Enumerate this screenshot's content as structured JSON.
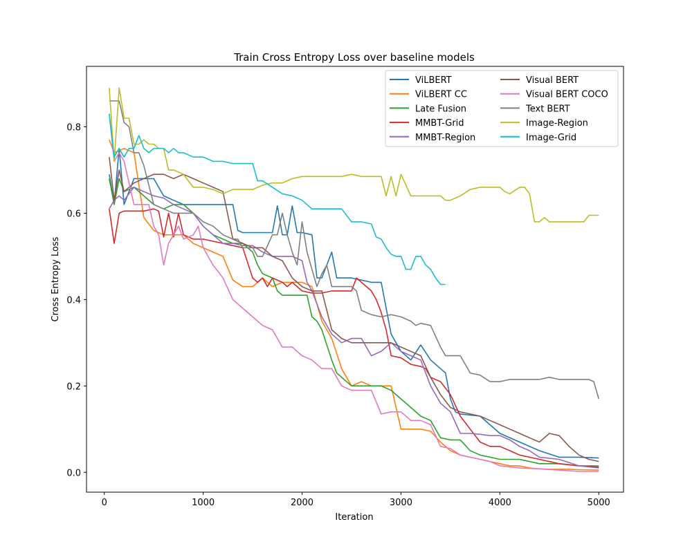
{
  "chart_data": {
    "type": "line",
    "title": "Train Cross Entropy Loss over baseline models",
    "xlabel": "Iteration",
    "ylabel": "Cross Entropy Loss",
    "xlim": [
      -180,
      5250
    ],
    "ylim": [
      -0.046,
      0.94
    ],
    "xticks": [
      0,
      1000,
      2000,
      3000,
      4000,
      5000
    ],
    "yticks": [
      0.0,
      0.2,
      0.4,
      0.6,
      0.8
    ],
    "grid": false,
    "legend_position": "top-right",
    "legend_columns": 2,
    "series": [
      {
        "name": "ViLBERT",
        "color": "#1f77b4",
        "x": [
          50,
          100,
          150,
          200,
          300,
          400,
          500,
          600,
          700,
          800,
          900,
          1000,
          1200,
          1300,
          1350,
          1400,
          1500,
          1600,
          1700,
          1750,
          1800,
          1850,
          1900,
          1950,
          2000,
          2100,
          2150,
          2200,
          2300,
          2350,
          2400,
          2500,
          2600,
          2700,
          2800,
          2900,
          3000,
          3100,
          3200,
          3300,
          3400,
          3450,
          3500,
          3550,
          3600,
          3800,
          4000,
          4200,
          4400,
          4600,
          4800,
          5000
        ],
        "y": [
          0.69,
          0.62,
          0.75,
          0.62,
          0.68,
          0.68,
          0.68,
          0.64,
          0.63,
          0.62,
          0.62,
          0.62,
          0.62,
          0.62,
          0.56,
          0.555,
          0.555,
          0.555,
          0.555,
          0.617,
          0.55,
          0.55,
          0.617,
          0.555,
          0.555,
          0.55,
          0.45,
          0.45,
          0.51,
          0.45,
          0.45,
          0.45,
          0.445,
          0.44,
          0.44,
          0.32,
          0.28,
          0.26,
          0.295,
          0.26,
          0.24,
          0.23,
          0.17,
          0.14,
          0.135,
          0.13,
          0.09,
          0.07,
          0.05,
          0.035,
          0.035,
          0.033
        ]
      },
      {
        "name": "ViLBERT CC",
        "color": "#ff7f0e",
        "x": [
          50,
          100,
          200,
          300,
          400,
          500,
          600,
          700,
          800,
          900,
          1000,
          1100,
          1200,
          1300,
          1400,
          1500,
          1600,
          1700,
          1800,
          1900,
          2000,
          2100,
          2200,
          2300,
          2400,
          2500,
          2600,
          2700,
          2800,
          2900,
          3000,
          3100,
          3200,
          3300,
          3400,
          3500,
          3600,
          3700,
          3800,
          3900,
          4000,
          4100,
          4200,
          4300,
          4400,
          4500,
          4600,
          4700,
          4800,
          5000
        ],
        "y": [
          0.77,
          0.74,
          0.75,
          0.74,
          0.59,
          0.56,
          0.55,
          0.55,
          0.55,
          0.53,
          0.52,
          0.51,
          0.5,
          0.445,
          0.43,
          0.43,
          0.45,
          0.43,
          0.44,
          0.44,
          0.44,
          0.43,
          0.35,
          0.31,
          0.24,
          0.2,
          0.21,
          0.2,
          0.2,
          0.2,
          0.1,
          0.1,
          0.1,
          0.095,
          0.07,
          0.05,
          0.04,
          0.035,
          0.03,
          0.025,
          0.02,
          0.015,
          0.015,
          0.01,
          0.008,
          0.007,
          0.007,
          0.007,
          0.006,
          0.005
        ]
      },
      {
        "name": "Late Fusion",
        "color": "#2ca02c",
        "x": [
          50,
          100,
          150,
          200,
          300,
          400,
          500,
          600,
          700,
          800,
          900,
          1000,
          1100,
          1200,
          1300,
          1400,
          1500,
          1550,
          1600,
          1700,
          1750,
          1800,
          1900,
          2000,
          2050,
          2100,
          2150,
          2200,
          2300,
          2350,
          2400,
          2500,
          2600,
          2700,
          2800,
          2900,
          3000,
          3100,
          3200,
          3300,
          3400,
          3500,
          3600,
          3700,
          3800,
          3900,
          4000,
          4100,
          4200,
          4300,
          4400,
          4600,
          4800,
          5000
        ],
        "y": [
          0.68,
          0.62,
          0.68,
          0.65,
          0.66,
          0.64,
          0.62,
          0.61,
          0.62,
          0.62,
          0.6,
          0.57,
          0.55,
          0.54,
          0.53,
          0.53,
          0.51,
          0.48,
          0.46,
          0.45,
          0.42,
          0.41,
          0.41,
          0.41,
          0.41,
          0.36,
          0.35,
          0.33,
          0.26,
          0.23,
          0.22,
          0.2,
          0.2,
          0.2,
          0.2,
          0.19,
          0.17,
          0.15,
          0.13,
          0.12,
          0.08,
          0.075,
          0.075,
          0.05,
          0.04,
          0.035,
          0.03,
          0.03,
          0.03,
          0.025,
          0.02,
          0.02,
          0.015,
          0.015
        ]
      },
      {
        "name": "MMBT-Grid",
        "color": "#d62728",
        "x": [
          50,
          100,
          150,
          200,
          300,
          400,
          500,
          550,
          600,
          650,
          700,
          750,
          800,
          900,
          1000,
          1100,
          1200,
          1300,
          1400,
          1500,
          1550,
          1600,
          1650,
          1700,
          1800,
          1850,
          1900,
          1950,
          2000,
          2100,
          2200,
          2300,
          2400,
          2500,
          2550,
          2600,
          2700,
          2750,
          2800,
          2850,
          2900,
          3000,
          3100,
          3200,
          3250,
          3300,
          3400,
          3500,
          3600,
          3700,
          3800,
          3900,
          4000,
          4100,
          4200,
          4400,
          4600,
          4800,
          5000
        ],
        "y": [
          0.61,
          0.53,
          0.6,
          0.605,
          0.605,
          0.605,
          0.61,
          0.605,
          0.545,
          0.6,
          0.545,
          0.6,
          0.55,
          0.54,
          0.54,
          0.535,
          0.53,
          0.525,
          0.52,
          0.45,
          0.44,
          0.45,
          0.43,
          0.45,
          0.44,
          0.43,
          0.44,
          0.43,
          0.42,
          0.415,
          0.415,
          0.42,
          0.42,
          0.42,
          0.45,
          0.44,
          0.42,
          0.4,
          0.37,
          0.33,
          0.27,
          0.265,
          0.25,
          0.245,
          0.24,
          0.22,
          0.21,
          0.18,
          0.13,
          0.1,
          0.07,
          0.06,
          0.06,
          0.05,
          0.04,
          0.03,
          0.02,
          0.015,
          0.012
        ]
      },
      {
        "name": "MMBT-Region",
        "color": "#9467bd",
        "x": [
          50,
          100,
          150,
          200,
          300,
          400,
          500,
          600,
          700,
          800,
          900,
          1000,
          1100,
          1200,
          1300,
          1400,
          1500,
          1600,
          1700,
          1800,
          1900,
          2000,
          2050,
          2100,
          2200,
          2300,
          2400,
          2500,
          2600,
          2700,
          2800,
          2900,
          3000,
          3100,
          3200,
          3300,
          3400,
          3500,
          3600,
          3700,
          3800,
          3900,
          4000,
          4100,
          4200,
          4300,
          4400,
          4600,
          4800,
          5000
        ],
        "y": [
          0.61,
          0.63,
          0.64,
          0.63,
          0.66,
          0.65,
          0.64,
          0.635,
          0.62,
          0.61,
          0.6,
          0.57,
          0.55,
          0.53,
          0.53,
          0.525,
          0.525,
          0.51,
          0.5,
          0.5,
          0.5,
          0.49,
          0.44,
          0.42,
          0.36,
          0.32,
          0.3,
          0.31,
          0.31,
          0.27,
          0.28,
          0.3,
          0.28,
          0.27,
          0.26,
          0.2,
          0.16,
          0.14,
          0.09,
          0.09,
          0.088,
          0.085,
          0.085,
          0.075,
          0.06,
          0.05,
          0.035,
          0.03,
          0.015,
          0.01
        ]
      },
      {
        "name": "Visual BERT",
        "color": "#8c564b",
        "x": [
          50,
          100,
          150,
          200,
          300,
          400,
          500,
          600,
          700,
          800,
          900,
          1000,
          1100,
          1200,
          1300,
          1400,
          1500,
          1600,
          1700,
          1800,
          1900,
          2000,
          2100,
          2200,
          2300,
          2400,
          2500,
          2600,
          2700,
          2800,
          2900,
          3000,
          3100,
          3200,
          3300,
          3400,
          3500,
          3600,
          3700,
          3800,
          3900,
          4000,
          4100,
          4200,
          4300,
          4400,
          4500,
          4600,
          4700,
          4800,
          4900,
          5000
        ],
        "y": [
          0.73,
          0.63,
          0.7,
          0.65,
          0.67,
          0.68,
          0.69,
          0.69,
          0.68,
          0.69,
          0.68,
          0.67,
          0.66,
          0.65,
          0.54,
          0.53,
          0.52,
          0.52,
          0.5,
          0.49,
          0.45,
          0.43,
          0.42,
          0.42,
          0.33,
          0.31,
          0.3,
          0.3,
          0.3,
          0.3,
          0.3,
          0.29,
          0.28,
          0.27,
          0.22,
          0.18,
          0.15,
          0.14,
          0.135,
          0.13,
          0.12,
          0.11,
          0.1,
          0.09,
          0.08,
          0.07,
          0.09,
          0.085,
          0.06,
          0.04,
          0.03,
          0.025
        ]
      },
      {
        "name": "Visual BERT COCO",
        "color": "#e377c2",
        "x": [
          50,
          100,
          150,
          200,
          300,
          400,
          450,
          500,
          550,
          600,
          650,
          700,
          750,
          800,
          900,
          950,
          1000,
          1100,
          1200,
          1300,
          1400,
          1500,
          1600,
          1700,
          1800,
          1900,
          2000,
          2100,
          2200,
          2300,
          2400,
          2500,
          2600,
          2700,
          2800,
          2900,
          3000,
          3100,
          3200,
          3300,
          3400,
          3500,
          3600,
          3700,
          3800,
          3900,
          4000,
          4200,
          4400,
          4600,
          4800,
          5000
        ],
        "y": [
          0.83,
          0.72,
          0.74,
          0.72,
          0.62,
          0.62,
          0.62,
          0.57,
          0.55,
          0.48,
          0.53,
          0.55,
          0.57,
          0.54,
          0.55,
          0.57,
          0.52,
          0.48,
          0.45,
          0.4,
          0.38,
          0.36,
          0.34,
          0.33,
          0.29,
          0.29,
          0.27,
          0.26,
          0.24,
          0.24,
          0.2,
          0.19,
          0.19,
          0.19,
          0.135,
          0.14,
          0.14,
          0.12,
          0.12,
          0.11,
          0.06,
          0.055,
          0.04,
          0.035,
          0.03,
          0.025,
          0.015,
          0.01,
          0.008,
          0.005,
          0.002,
          0.002
        ]
      },
      {
        "name": "Text BERT",
        "color": "#7f7f7f",
        "x": [
          50,
          100,
          150,
          200,
          250,
          300,
          350,
          400,
          500,
          600,
          700,
          800,
          900,
          1000,
          1100,
          1200,
          1300,
          1350,
          1400,
          1500,
          1550,
          1600,
          1700,
          1750,
          1800,
          1850,
          1900,
          1950,
          2000,
          2050,
          2100,
          2150,
          2200,
          2250,
          2300,
          2400,
          2500,
          2550,
          2600,
          2700,
          2800,
          2900,
          3000,
          3100,
          3150,
          3200,
          3300,
          3400,
          3450,
          3500,
          3600,
          3700,
          3800,
          3900,
          4000,
          4100,
          4200,
          4300,
          4400,
          4500,
          4600,
          4700,
          4800,
          4900,
          4950,
          5000
        ],
        "y": [
          0.86,
          0.86,
          0.86,
          0.81,
          0.8,
          0.74,
          0.74,
          0.71,
          0.62,
          0.61,
          0.6,
          0.6,
          0.6,
          0.58,
          0.57,
          0.55,
          0.54,
          0.54,
          0.52,
          0.52,
          0.5,
          0.5,
          0.55,
          0.55,
          0.6,
          0.55,
          0.51,
          0.48,
          0.58,
          0.51,
          0.47,
          0.43,
          0.46,
          0.48,
          0.43,
          0.43,
          0.43,
          0.42,
          0.375,
          0.365,
          0.36,
          0.365,
          0.36,
          0.35,
          0.34,
          0.345,
          0.34,
          0.29,
          0.27,
          0.27,
          0.27,
          0.23,
          0.225,
          0.21,
          0.21,
          0.215,
          0.215,
          0.215,
          0.215,
          0.22,
          0.215,
          0.215,
          0.215,
          0.215,
          0.21,
          0.17
        ]
      },
      {
        "name": "Image-Region",
        "color": "#bcbd22",
        "x": [
          50,
          100,
          150,
          200,
          250,
          300,
          350,
          400,
          450,
          500,
          550,
          600,
          650,
          700,
          800,
          900,
          1000,
          1100,
          1200,
          1300,
          1400,
          1500,
          1600,
          1700,
          1800,
          1900,
          2000,
          2100,
          2200,
          2300,
          2400,
          2500,
          2600,
          2700,
          2800,
          2850,
          2900,
          2950,
          3000,
          3050,
          3100,
          3200,
          3300,
          3400,
          3450,
          3500,
          3600,
          3700,
          3800,
          3900,
          4000,
          4050,
          4100,
          4200,
          4250,
          4300,
          4350,
          4400,
          4450,
          4500,
          4600,
          4700,
          4800,
          4850,
          4900,
          5000
        ],
        "y": [
          0.89,
          0.72,
          0.89,
          0.82,
          0.82,
          0.76,
          0.76,
          0.77,
          0.76,
          0.76,
          0.75,
          0.75,
          0.7,
          0.7,
          0.69,
          0.66,
          0.66,
          0.655,
          0.645,
          0.655,
          0.655,
          0.655,
          0.665,
          0.67,
          0.67,
          0.68,
          0.685,
          0.685,
          0.685,
          0.685,
          0.685,
          0.69,
          0.685,
          0.685,
          0.685,
          0.64,
          0.685,
          0.64,
          0.69,
          0.665,
          0.64,
          0.64,
          0.64,
          0.64,
          0.63,
          0.63,
          0.64,
          0.655,
          0.66,
          0.66,
          0.66,
          0.65,
          0.645,
          0.66,
          0.66,
          0.645,
          0.58,
          0.58,
          0.59,
          0.58,
          0.58,
          0.58,
          0.58,
          0.58,
          0.595,
          0.595
        ]
      },
      {
        "name": "Image-Grid",
        "color": "#17becf",
        "x": [
          50,
          100,
          150,
          200,
          250,
          300,
          350,
          400,
          450,
          500,
          550,
          600,
          650,
          700,
          750,
          800,
          900,
          1000,
          1100,
          1200,
          1300,
          1400,
          1500,
          1550,
          1600,
          1700,
          1800,
          1900,
          2000,
          2100,
          2200,
          2300,
          2400,
          2500,
          2600,
          2700,
          2750,
          2800,
          2850,
          2900,
          2950,
          3000,
          3050,
          3100,
          3150,
          3200,
          3250,
          3300,
          3350,
          3400,
          3450
        ],
        "y": [
          0.83,
          0.73,
          0.75,
          0.73,
          0.75,
          0.75,
          0.78,
          0.75,
          0.74,
          0.75,
          0.75,
          0.75,
          0.74,
          0.75,
          0.74,
          0.74,
          0.73,
          0.73,
          0.72,
          0.72,
          0.715,
          0.715,
          0.715,
          0.675,
          0.675,
          0.66,
          0.645,
          0.64,
          0.63,
          0.61,
          0.61,
          0.61,
          0.61,
          0.58,
          0.58,
          0.575,
          0.545,
          0.54,
          0.52,
          0.505,
          0.5,
          0.5,
          0.47,
          0.47,
          0.5,
          0.5,
          0.48,
          0.47,
          0.45,
          0.435,
          0.435
        ]
      }
    ]
  }
}
